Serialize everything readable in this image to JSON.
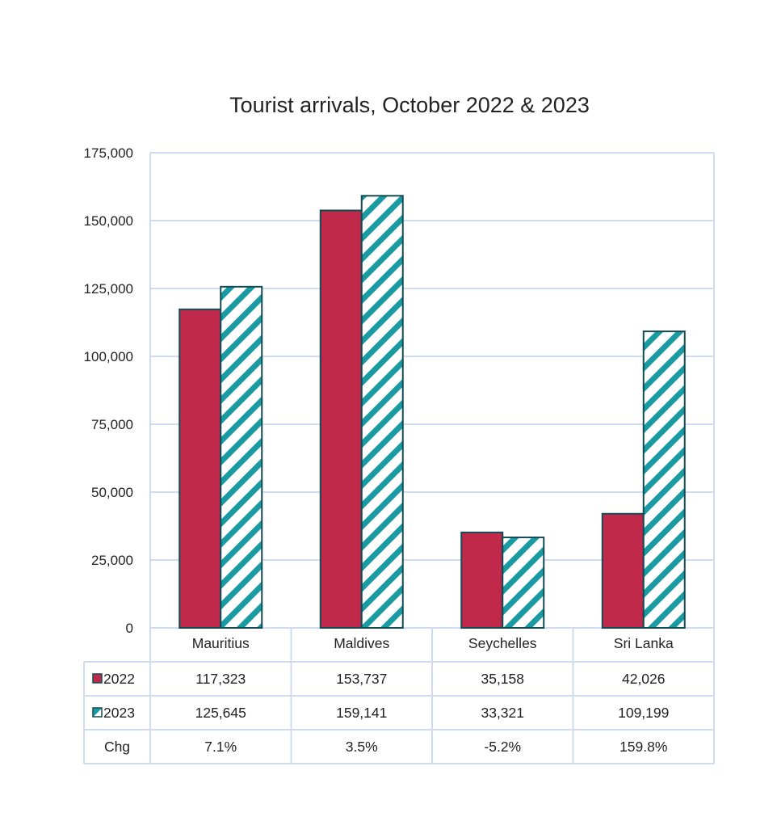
{
  "chart_data": {
    "type": "bar",
    "title": "Tourist arrivals, October 2022 & 2023",
    "categories": [
      "Mauritius",
      "Maldives",
      "Seychelles",
      "Sri Lanka"
    ],
    "series": [
      {
        "name": "2022",
        "values": [
          117323,
          153737,
          35158,
          42026
        ],
        "labels": [
          "117,323",
          "153,737",
          "35,158",
          "42,026"
        ],
        "color": "#c0294a",
        "pattern": "solid"
      },
      {
        "name": "2023",
        "values": [
          125645,
          159141,
          33321,
          109199
        ],
        "labels": [
          "125,645",
          "159,141",
          "33,321",
          "109,199"
        ],
        "color": "#1a9aa2",
        "pattern": "diagonal-stripes"
      }
    ],
    "table_rows": [
      {
        "name": "Chg",
        "labels": [
          "7.1%",
          "3.5%",
          "-5.2%",
          "159.8%"
        ]
      }
    ],
    "ylim": [
      0,
      175000
    ],
    "yticks": [
      0,
      25000,
      50000,
      75000,
      100000,
      125000,
      150000,
      175000
    ],
    "ytick_labels": [
      "0",
      "25,000",
      "50,000",
      "75,000",
      "100,000",
      "125,000",
      "150,000",
      "175,000"
    ],
    "grid": true,
    "legend": "data-table",
    "colors": {
      "grid": "#cfdcf0",
      "bar_outline": "#134b55"
    }
  }
}
